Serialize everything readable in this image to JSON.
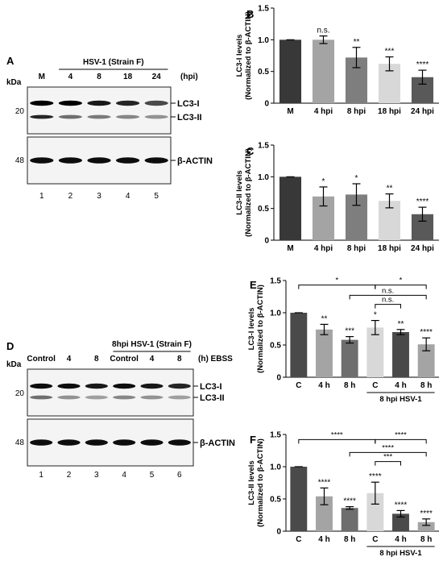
{
  "panels": {
    "A": {
      "letter": "A",
      "kda": "kDa",
      "mw_upper": "20",
      "mw_lower": "48",
      "header": "HSV-1 (Strain F)",
      "units": "(hpi)",
      "lanes": [
        "M",
        "4",
        "8",
        "18",
        "24"
      ],
      "lane_numbers": [
        "1",
        "2",
        "3",
        "4",
        "5"
      ],
      "band_upper": "LC3-I",
      "band_lower": "LC3-II",
      "loading": "β-ACTIN"
    },
    "D": {
      "letter": "D",
      "kda": "kDa",
      "mw_upper": "20",
      "mw_lower": "48",
      "header": "8hpi HSV-1 (Strain F)",
      "units": "(h) EBSS",
      "lanes": [
        "Control",
        "4",
        "8",
        "Control",
        "4",
        "8"
      ],
      "lane_numbers": [
        "1",
        "2",
        "3",
        "4",
        "5",
        "6"
      ],
      "band_upper": "LC3-I",
      "band_lower": "LC3-II",
      "loading": "β-ACTIN"
    }
  },
  "chart_data": [
    {
      "panel": "B",
      "type": "bar",
      "ylabel": [
        "LC3-I levels",
        "(Normalized to β-ACTIN)"
      ],
      "ylim": [
        0,
        1.5
      ],
      "yticks": [
        "0",
        "0.5",
        "1.0",
        "1.5"
      ],
      "categories": [
        "M",
        "4 hpi",
        "8 hpi",
        "18 hpi",
        "24 hpi"
      ],
      "values": [
        1.0,
        1.0,
        0.72,
        0.62,
        0.41
      ],
      "errors": [
        0.0,
        0.06,
        0.16,
        0.11,
        0.11
      ],
      "colors": [
        "#383838",
        "#a4a4a4",
        "#7e7e7e",
        "#d8d8d8",
        "#595959"
      ],
      "annotations": [
        "",
        "n.s.",
        "**",
        "***",
        "****"
      ]
    },
    {
      "panel": "C",
      "type": "bar",
      "ylabel": [
        "LC3-II levels",
        "(Normalized to β-ACTIN)"
      ],
      "ylim": [
        0,
        1.5
      ],
      "yticks": [
        "0",
        "0.5",
        "1.0",
        "1.5"
      ],
      "categories": [
        "M",
        "4 hpi",
        "8 hpi",
        "18 hpi",
        "24 hpi"
      ],
      "values": [
        1.0,
        0.69,
        0.72,
        0.62,
        0.41
      ],
      "errors": [
        0.0,
        0.15,
        0.17,
        0.11,
        0.11
      ],
      "colors": [
        "#383838",
        "#a4a4a4",
        "#7e7e7e",
        "#d8d8d8",
        "#595959"
      ],
      "annotations": [
        "",
        "*",
        "*",
        "**",
        "****"
      ]
    },
    {
      "panel": "E",
      "type": "bar",
      "ylabel": [
        "LC3-I levels",
        "(Normalized to β-ACTIN)"
      ],
      "ylim": [
        0,
        1.5
      ],
      "yticks": [
        "0",
        "0.5",
        "1.0",
        "1.5"
      ],
      "categories": [
        "C",
        "4 h",
        "8 h",
        "C",
        "4 h",
        "8 h"
      ],
      "values": [
        1.0,
        0.74,
        0.58,
        0.77,
        0.7,
        0.51
      ],
      "errors": [
        0.0,
        0.08,
        0.05,
        0.11,
        0.04,
        0.1
      ],
      "colors": [
        "#4a4a4a",
        "#a4a4a4",
        "#6e6e6e",
        "#d8d8d8",
        "#4a4a4a",
        "#a4a4a4"
      ],
      "annotations": [
        "",
        "**",
        "***",
        "*",
        "**",
        "****"
      ],
      "group_label": "8 hpi HSV-1",
      "comparisons": [
        {
          "from": 0,
          "to": 3,
          "label": "*",
          "level": 1.43
        },
        {
          "from": 3,
          "to": 5,
          "label": "*",
          "level": 1.43
        },
        {
          "from": 2,
          "to": 5,
          "label": "n.s.",
          "level": 1.27
        },
        {
          "from": 3,
          "to": 4,
          "label": "n.s.",
          "level": 1.13
        }
      ]
    },
    {
      "panel": "F",
      "type": "bar",
      "ylabel": [
        "LC3-II levels",
        "(Normalized to β-ACTIN)"
      ],
      "ylim": [
        0,
        1.5
      ],
      "yticks": [
        "0",
        "0.5",
        "1.0",
        "1.5"
      ],
      "categories": [
        "C",
        "4 h",
        "8 h",
        "C",
        "4 h",
        "8 h"
      ],
      "values": [
        1.0,
        0.54,
        0.36,
        0.59,
        0.27,
        0.14
      ],
      "errors": [
        0.0,
        0.13,
        0.02,
        0.17,
        0.05,
        0.05
      ],
      "colors": [
        "#4a4a4a",
        "#a4a4a4",
        "#6e6e6e",
        "#d8d8d8",
        "#4a4a4a",
        "#a4a4a4"
      ],
      "annotations": [
        "",
        "****",
        "****",
        "****",
        "****",
        "****"
      ],
      "group_label": "8 hpi HSV-1",
      "comparisons": [
        {
          "from": 0,
          "to": 3,
          "label": "****",
          "level": 1.42
        },
        {
          "from": 3,
          "to": 5,
          "label": "****",
          "level": 1.42
        },
        {
          "from": 2,
          "to": 5,
          "label": "****",
          "level": 1.22
        },
        {
          "from": 3,
          "to": 4,
          "label": "***",
          "level": 1.08
        }
      ]
    }
  ]
}
